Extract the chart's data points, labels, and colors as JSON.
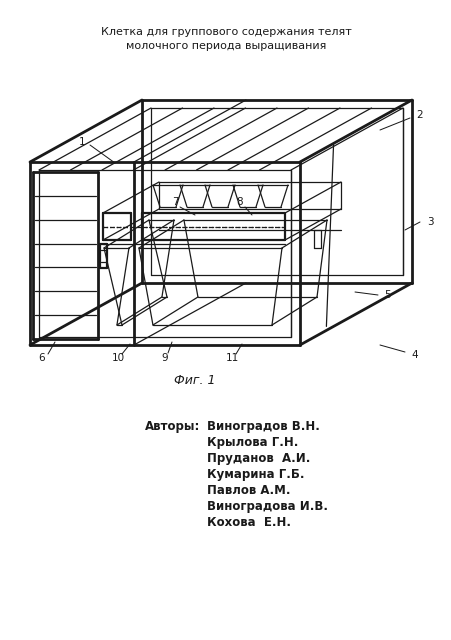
{
  "title_line1": "Клетка для группового содержания телят",
  "title_line2": "молочного периода выращивания",
  "fig_caption": "Фиг. 1",
  "authors_label": "Авторы:",
  "authors": [
    "Виноградов В.Н.",
    "Крылова Г.Н.",
    "Пруданов  А.И.",
    "Кумарина Г.Б.",
    "Павлов А.М.",
    "Виноградова И.В.",
    "Кохова  Е.Н."
  ],
  "bg_color": "#ffffff",
  "line_color": "#1a1a1a",
  "lw_main": 1.6,
  "lw_thin": 0.9,
  "lw_thick": 2.0
}
